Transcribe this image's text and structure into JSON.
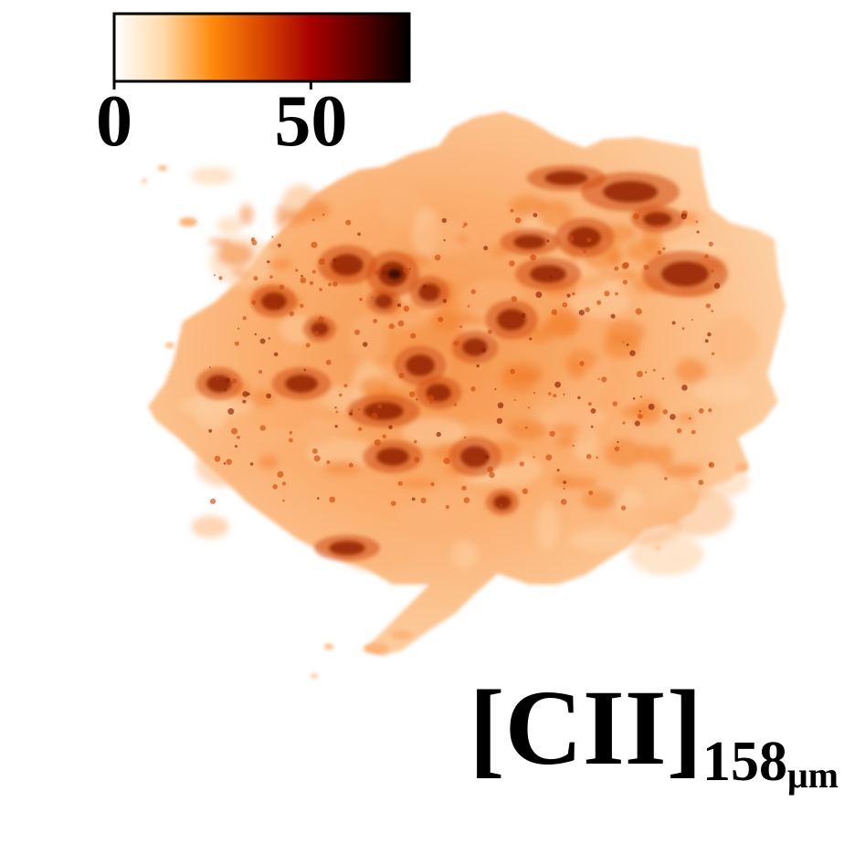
{
  "colorbar": {
    "colormap": "gist_heat_r",
    "stops": [
      "#ffffff",
      "#ffd9a8",
      "#ff8a0a",
      "#d94700",
      "#a80000",
      "#5a0000",
      "#000000"
    ],
    "ticks": [
      "0",
      "50"
    ],
    "tick_values": [
      0,
      50
    ],
    "range": [
      0,
      75
    ]
  },
  "image": {
    "colors": {
      "pale": "#fdd0a2",
      "light": "#fcb47a",
      "mid": "#f27d2a",
      "strong": "#cf4a0d",
      "dark": "#8c1f04",
      "darkest": "#2a0500"
    }
  },
  "label": {
    "species": "[CII]",
    "wavelength": "158",
    "unit": "μm"
  }
}
